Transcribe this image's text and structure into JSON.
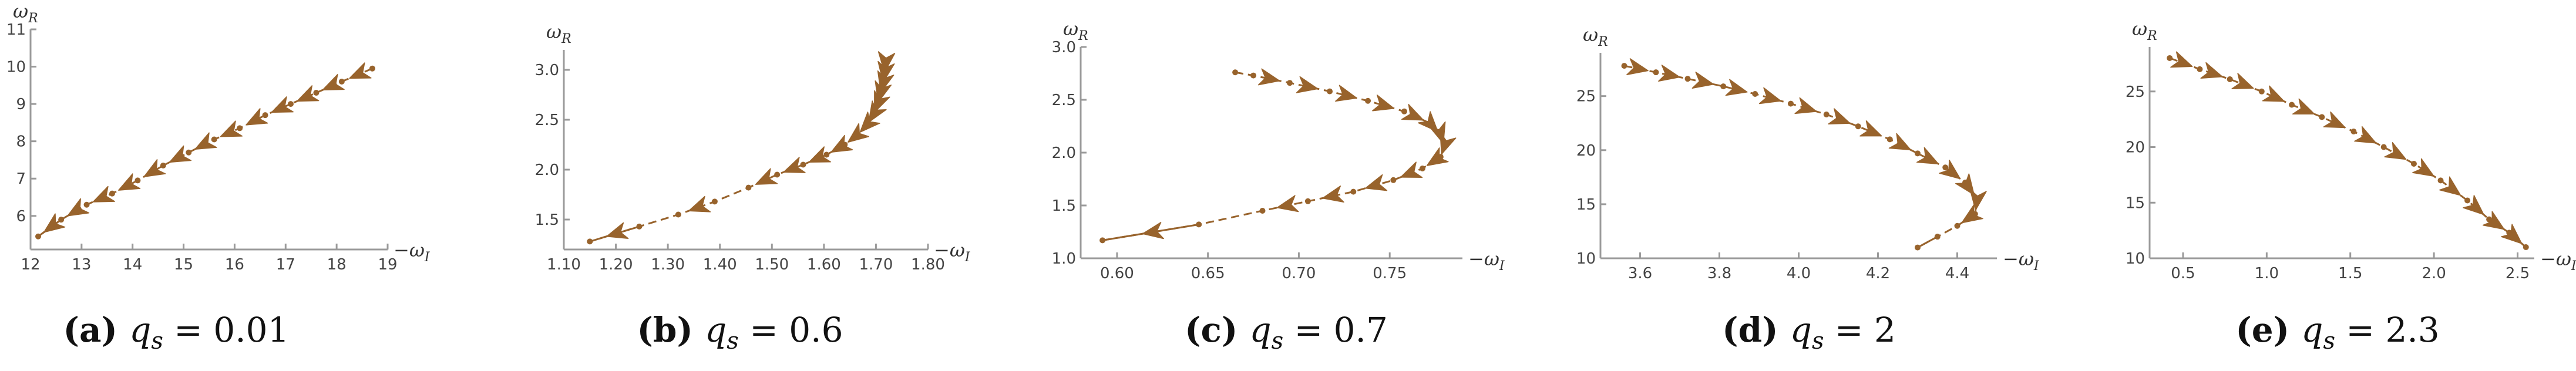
{
  "colors": {
    "curve": "#98632c",
    "axis": "#9a9a9a"
  },
  "chart_data": [
    {
      "type": "line",
      "panel_label": "(a)",
      "caption_prefix": "q",
      "caption_subscript": "s",
      "caption_value": "= 0.01",
      "xlabel_prefix": "−ω",
      "xlabel_subscript": "I",
      "ylabel_prefix": "ω",
      "ylabel_subscript": "R",
      "xlim": [
        12,
        19
      ],
      "ylim": [
        5.1,
        11
      ],
      "xticks": [
        12,
        13,
        14,
        15,
        16,
        17,
        18,
        19
      ],
      "yticks": [
        6,
        7,
        8,
        9,
        10,
        11
      ],
      "x": [
        18.7,
        18.1,
        17.6,
        17.1,
        16.6,
        16.1,
        15.6,
        15.1,
        14.6,
        14.1,
        13.6,
        13.1,
        12.6,
        12.15
      ],
      "y": [
        9.95,
        9.6,
        9.3,
        9.0,
        8.7,
        8.35,
        8.05,
        7.7,
        7.35,
        6.95,
        6.6,
        6.3,
        5.9,
        5.45
      ],
      "arrow_after_index": [
        0,
        1,
        2,
        3,
        4,
        5,
        6,
        7,
        8,
        9,
        10,
        11,
        12
      ]
    },
    {
      "type": "line",
      "panel_label": "(b)",
      "caption_prefix": "q",
      "caption_subscript": "s",
      "caption_value": "= 0.6",
      "xlabel_prefix": "−ω",
      "xlabel_subscript": "I",
      "ylabel_prefix": "ω",
      "ylabel_subscript": "R",
      "xlim": [
        1.1,
        1.8
      ],
      "ylim": [
        1.2,
        3.2
      ],
      "xticks": [
        1.1,
        1.2,
        1.3,
        1.4,
        1.5,
        1.6,
        1.7,
        1.8
      ],
      "yticks": [
        1.5,
        2.0,
        2.5,
        3.0
      ],
      "x": [
        1.718,
        1.716,
        1.713,
        1.708,
        1.703,
        1.695,
        1.683,
        1.665,
        1.64,
        1.605,
        1.56,
        1.51,
        1.455,
        1.39,
        1.32,
        1.245,
        1.15
      ],
      "y": [
        3.05,
        2.95,
        2.85,
        2.75,
        2.65,
        2.55,
        2.45,
        2.35,
        2.25,
        2.15,
        2.05,
        1.95,
        1.82,
        1.68,
        1.55,
        1.43,
        1.28
      ],
      "arrow_after_index": [
        0,
        1,
        2,
        3,
        4,
        5,
        6,
        7,
        8,
        9,
        10,
        11,
        13,
        15
      ]
    },
    {
      "type": "line",
      "panel_label": "(c)",
      "caption_prefix": "q",
      "caption_subscript": "s",
      "caption_value": "= 0.7",
      "xlabel_prefix": "−ω",
      "xlabel_subscript": "I",
      "ylabel_prefix": "ω",
      "ylabel_subscript": "R",
      "xlim": [
        0.58,
        0.79
      ],
      "ylim": [
        1.0,
        3.0
      ],
      "xticks": [
        0.6,
        0.65,
        0.7,
        0.75
      ],
      "yticks": [
        1.0,
        1.5,
        2.0,
        2.5,
        3.0
      ],
      "x": [
        0.665,
        0.675,
        0.695,
        0.717,
        0.738,
        0.758,
        0.772,
        0.778,
        0.78,
        0.778,
        0.768,
        0.752,
        0.73,
        0.705,
        0.68,
        0.645,
        0.592
      ],
      "y": [
        2.76,
        2.73,
        2.66,
        2.58,
        2.49,
        2.39,
        2.28,
        2.17,
        2.06,
        1.96,
        1.85,
        1.74,
        1.63,
        1.54,
        1.45,
        1.32,
        1.17
      ],
      "arrow_after_index": [
        1,
        2,
        3,
        4,
        5,
        6,
        7,
        8,
        9,
        10,
        11,
        12,
        13,
        15
      ]
    },
    {
      "type": "line",
      "panel_label": "(d)",
      "caption_prefix": "q",
      "caption_subscript": "s",
      "caption_value": "= 2",
      "xlabel_prefix": "−ω",
      "xlabel_subscript": "I",
      "ylabel_prefix": "ω",
      "ylabel_subscript": "R",
      "xlim": [
        3.5,
        4.5
      ],
      "ylim": [
        10,
        29
      ],
      "xticks": [
        3.6,
        3.8,
        4.0,
        4.2,
        4.4
      ],
      "yticks": [
        10,
        15,
        20,
        25
      ],
      "x": [
        3.56,
        3.64,
        3.72,
        3.81,
        3.89,
        3.98,
        4.07,
        4.15,
        4.23,
        4.3,
        4.37,
        4.42,
        4.45,
        4.445,
        4.4,
        4.35,
        4.3
      ],
      "y": [
        27.8,
        27.2,
        26.6,
        25.9,
        25.2,
        24.3,
        23.3,
        22.2,
        21.0,
        19.7,
        18.4,
        17.0,
        15.5,
        14.1,
        13.0,
        12.0,
        11.0
      ],
      "arrow_after_index": [
        0,
        1,
        2,
        3,
        4,
        5,
        6,
        7,
        8,
        9,
        10,
        11,
        12,
        13
      ]
    },
    {
      "type": "line",
      "panel_label": "(e)",
      "caption_prefix": "q",
      "caption_subscript": "s",
      "caption_value": "= 2.3",
      "xlabel_prefix": "−ω",
      "xlabel_subscript": "I",
      "ylabel_prefix": "ω",
      "ylabel_subscript": "R",
      "xlim": [
        0.3,
        2.6
      ],
      "ylim": [
        10,
        29
      ],
      "xticks": [
        0.5,
        1.0,
        1.5,
        2.0,
        2.5
      ],
      "yticks": [
        10,
        15,
        20,
        25
      ],
      "x": [
        0.42,
        0.6,
        0.78,
        0.97,
        1.15,
        1.33,
        1.52,
        1.7,
        1.88,
        2.04,
        2.2,
        2.33,
        2.45,
        2.55
      ],
      "y": [
        28.0,
        27.0,
        26.1,
        25.0,
        23.8,
        22.7,
        21.4,
        20.0,
        18.5,
        17.0,
        15.2,
        13.5,
        12.3,
        11.0
      ],
      "arrow_after_index": [
        0,
        1,
        2,
        3,
        4,
        5,
        6,
        7,
        8,
        9,
        10,
        11,
        12
      ]
    }
  ]
}
